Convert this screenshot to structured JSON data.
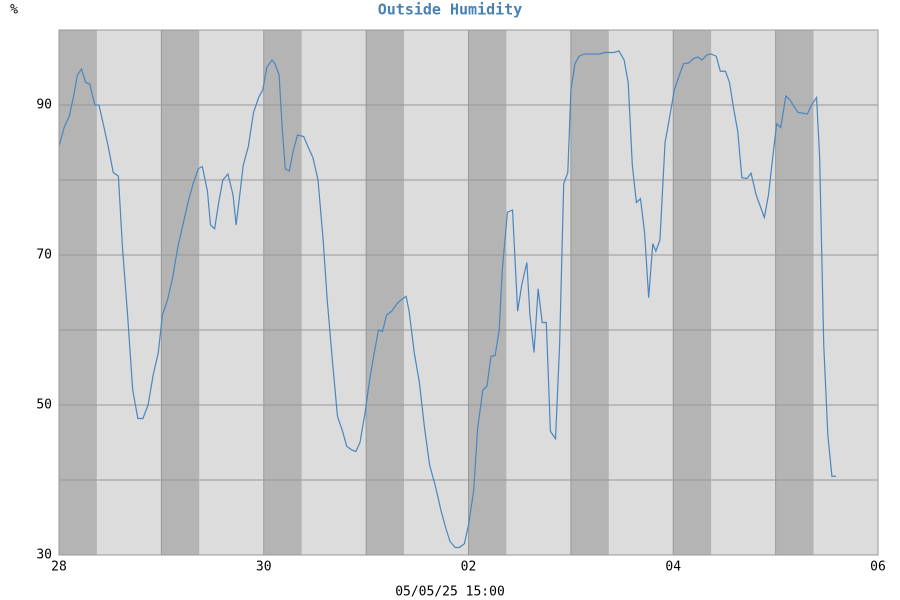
{
  "chart_data": {
    "type": "line",
    "title": "Outside Humidity",
    "y_label": "%",
    "x_label": "05/05/25 15:00",
    "xlim": [
      0,
      8
    ],
    "xticks": [
      {
        "value": 0,
        "label": "28"
      },
      {
        "value": 2,
        "label": "30"
      },
      {
        "value": 4,
        "label": "02"
      },
      {
        "value": 6,
        "label": "04"
      },
      {
        "value": 8,
        "label": "06"
      }
    ],
    "xgrid_minor": [
      1,
      3,
      5,
      7
    ],
    "ylim": [
      30,
      100
    ],
    "yticks": [
      30,
      50,
      70,
      90
    ],
    "ygrid_minor": [
      40,
      60,
      80,
      100
    ],
    "grid": true,
    "series": [
      {
        "color": "#4a86c0",
        "x": [
          0,
          0.05,
          0.1,
          0.14,
          0.18,
          0.22,
          0.26,
          0.3,
          0.35,
          0.39,
          0.44,
          0.48,
          0.53,
          0.58,
          0.62,
          0.67,
          0.72,
          0.77,
          0.82,
          0.87,
          0.92,
          0.97,
          1.01,
          1.06,
          1.11,
          1.16,
          1.21,
          1.26,
          1.31,
          1.36,
          1.4,
          1.45,
          1.48,
          1.52,
          1.56,
          1.6,
          1.65,
          1.7,
          1.73,
          1.77,
          1.8,
          1.85,
          1.9,
          1.95,
          1.99,
          2.03,
          2.08,
          2.11,
          2.15,
          2.18,
          2.21,
          2.25,
          2.29,
          2.33,
          2.39,
          2.43,
          2.48,
          2.53,
          2.58,
          2.62,
          2.67,
          2.72,
          2.77,
          2.81,
          2.86,
          2.9,
          2.94,
          2.99,
          3.03,
          3.08,
          3.12,
          3.16,
          3.2,
          3.25,
          3.3,
          3.34,
          3.39,
          3.42,
          3.47,
          3.52,
          3.57,
          3.62,
          3.68,
          3.73,
          3.78,
          3.82,
          3.87,
          3.91,
          3.96,
          4.0,
          4.05,
          4.09,
          4.14,
          4.18,
          4.22,
          4.26,
          4.3,
          4.33,
          4.38,
          4.43,
          4.48,
          4.52,
          4.57,
          4.6,
          4.64,
          4.68,
          4.72,
          4.76,
          4.8,
          4.85,
          4.89,
          4.93,
          4.97,
          5.0,
          5.04,
          5.08,
          5.13,
          5.18,
          5.23,
          5.28,
          5.33,
          5.38,
          5.42,
          5.47,
          5.52,
          5.56,
          5.6,
          5.64,
          5.68,
          5.72,
          5.76,
          5.8,
          5.83,
          5.87,
          5.92,
          5.96,
          6.01,
          6.06,
          6.1,
          6.15,
          6.2,
          6.24,
          6.28,
          6.33,
          6.37,
          6.42,
          6.46,
          6.51,
          6.55,
          6.59,
          6.63,
          6.67,
          6.72,
          6.76,
          6.81,
          6.85,
          6.89,
          6.93,
          6.98,
          7.01,
          7.05,
          7.1,
          7.14,
          7.18,
          7.22,
          7.27,
          7.31,
          7.35,
          7.4,
          7.43,
          7.47,
          7.51,
          7.55,
          7.59
        ],
        "values": [
          84.5,
          87,
          88.5,
          91,
          94,
          94.8,
          93,
          92.8,
          90,
          90,
          87,
          84.5,
          81,
          80.5,
          71,
          62,
          52,
          48.2,
          48.2,
          50,
          54,
          57,
          62,
          64,
          67,
          71,
          74,
          77,
          79.5,
          81.5,
          81.8,
          78.5,
          74,
          73.5,
          77,
          80,
          80.8,
          78,
          74,
          78.5,
          82,
          84.5,
          89,
          91,
          92,
          95,
          96,
          95.5,
          94,
          87,
          81.5,
          81.2,
          84,
          86,
          85.8,
          84.5,
          83,
          80,
          72,
          64,
          56,
          48.5,
          46.5,
          44.5,
          44,
          43.8,
          45,
          49,
          53,
          57,
          60,
          59.8,
          62,
          62.5,
          63.5,
          64,
          64.5,
          62.5,
          57,
          53,
          47,
          42,
          39,
          36,
          33.5,
          31.8,
          31,
          31,
          31.5,
          34,
          38.5,
          47,
          52,
          52.5,
          56.5,
          56.6,
          60,
          68,
          75.7,
          76,
          62.5,
          66,
          69,
          62,
          57,
          65.5,
          61,
          61,
          46.5,
          45.5,
          58,
          79.5,
          81,
          92,
          95.5,
          96.5,
          96.8,
          96.8,
          96.8,
          96.8,
          97,
          97,
          97,
          97.2,
          96,
          93,
          82,
          77,
          77.5,
          73,
          64.3,
          71.5,
          70.5,
          72,
          85,
          88,
          92,
          94,
          95.5,
          95.6,
          96.2,
          96.4,
          96,
          96.7,
          96.8,
          96.5,
          94.5,
          94.5,
          93,
          89.5,
          86.5,
          80.3,
          80.2,
          80.9,
          78,
          76.5,
          75,
          78,
          84,
          87.5,
          87,
          91.2,
          90.7,
          89.8,
          89,
          88.9,
          88.8,
          90,
          91,
          83,
          58,
          46,
          40.5,
          40.5
        ]
      }
    ]
  }
}
